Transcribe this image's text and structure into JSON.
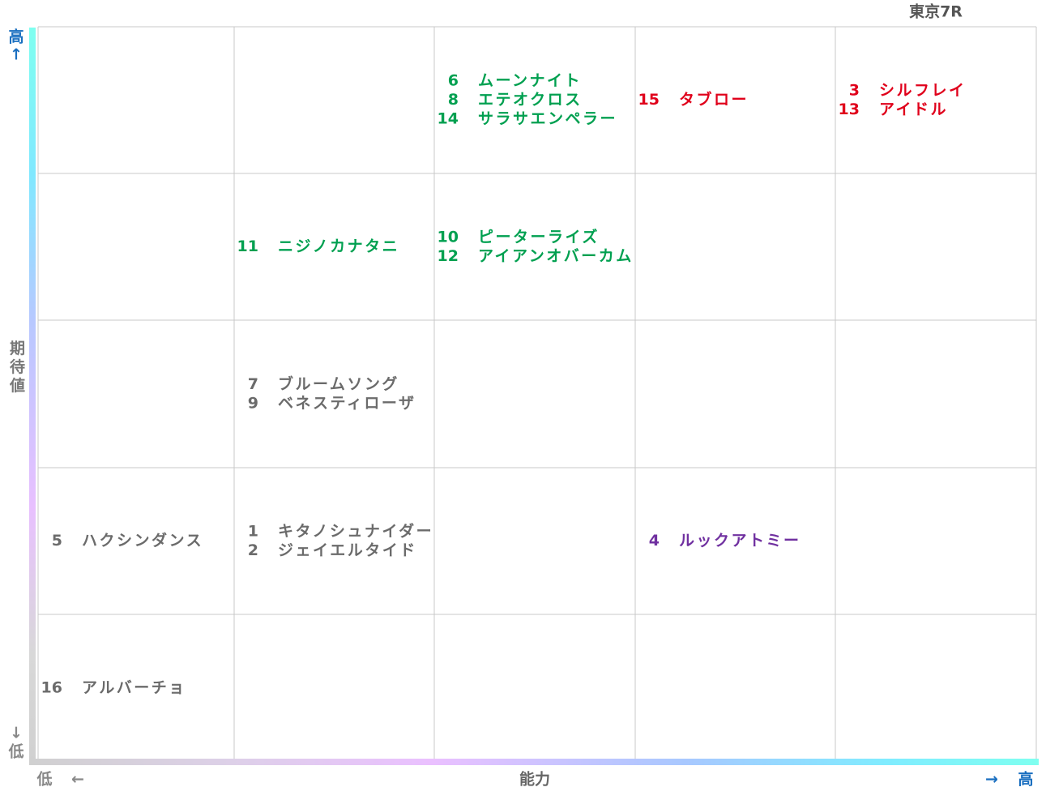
{
  "header": {
    "title": "東京7R"
  },
  "y_axis": {
    "high": "高",
    "up_arrow": "↑",
    "label": "期待値",
    "down_arrow": "↓",
    "low": "低"
  },
  "x_axis": {
    "low": "低",
    "left_arrow": "←",
    "label": "能力",
    "right_arrow": "→",
    "high": "高"
  },
  "grid": {
    "rows": [
      [
        [],
        [],
        [
          {
            "number": "6",
            "name": "ムーンナイト",
            "color": "#00a050"
          },
          {
            "number": "8",
            "name": "エテオクロス",
            "color": "#00a050"
          },
          {
            "number": "14",
            "name": "サラサエンペラー",
            "color": "#00a050"
          }
        ],
        [
          {
            "number": "15",
            "name": "タブロー",
            "color": "#e0001b"
          }
        ],
        [
          {
            "number": "3",
            "name": "シルフレイ",
            "color": "#e0001b"
          },
          {
            "number": "13",
            "name": "アイドル",
            "color": "#e0001b"
          }
        ]
      ],
      [
        [],
        [
          {
            "number": "11",
            "name": "ニジノカナタニ",
            "color": "#00a050"
          }
        ],
        [
          {
            "number": "10",
            "name": "ピーターライズ",
            "color": "#00a050"
          },
          {
            "number": "12",
            "name": "アイアンオバーカム",
            "color": "#00a050"
          }
        ],
        [],
        []
      ],
      [
        [],
        [
          {
            "number": "7",
            "name": "ブルームソング",
            "color": "#6b6b6b"
          },
          {
            "number": "9",
            "name": "ベネスティローザ",
            "color": "#6b6b6b"
          }
        ],
        [],
        [],
        []
      ],
      [
        [
          {
            "number": "5",
            "name": "ハクシンダンス",
            "color": "#6b6b6b"
          }
        ],
        [
          {
            "number": "1",
            "name": "キタノシュナイダー",
            "color": "#6b6b6b"
          },
          {
            "number": "2",
            "name": "ジェイエルタイド",
            "color": "#6b6b6b"
          }
        ],
        [],
        [
          {
            "number": "4",
            "name": "ルックアトミー",
            "color": "#7030a0"
          }
        ],
        []
      ],
      [
        [
          {
            "number": "16",
            "name": "アルバーチョ",
            "color": "#6b6b6b"
          }
        ],
        [],
        [],
        [],
        []
      ]
    ]
  }
}
